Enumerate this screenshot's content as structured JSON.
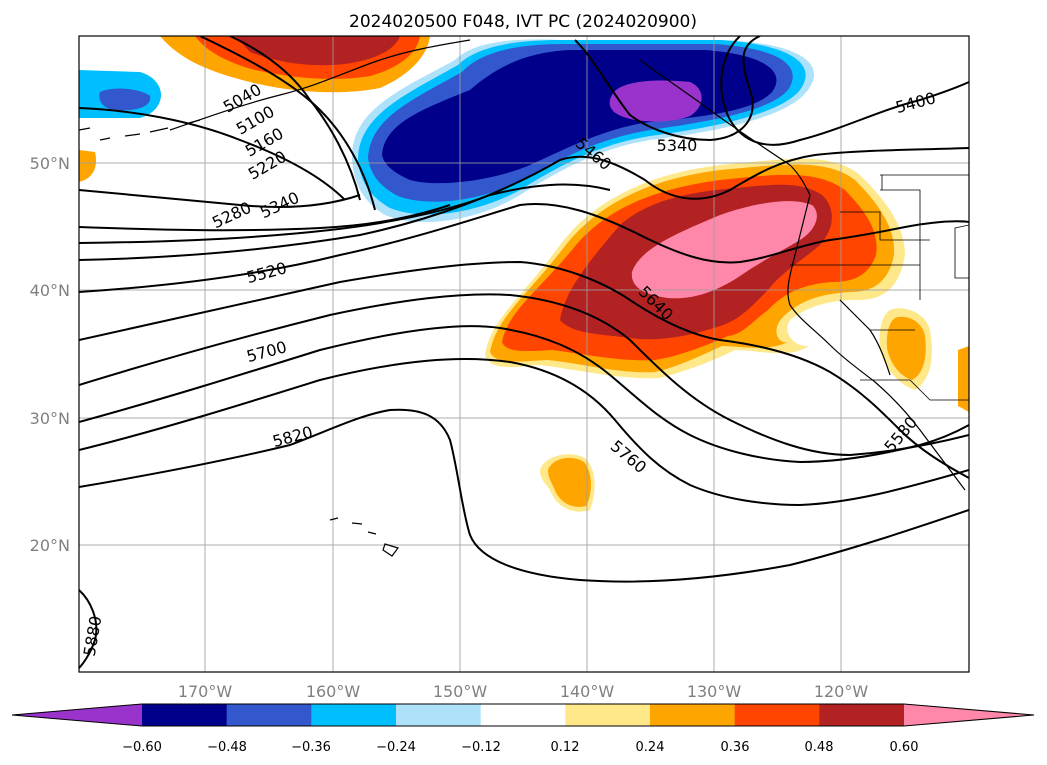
{
  "title": "2024020500 F048, IVT PC (2024020900)",
  "map": {
    "lon_range": [
      -180,
      -110
    ],
    "lat_range": [
      10,
      60
    ],
    "lat_labels": [
      "20°N",
      "30°N",
      "40°N",
      "50°N"
    ],
    "lon_labels": [
      "170°W",
      "160°W",
      "150°W",
      "140°W",
      "130°W",
      "120°W"
    ],
    "gridlines": true,
    "contour_labels": [
      "5040",
      "5100",
      "5160",
      "5220",
      "5280",
      "5340",
      "5340",
      "5400",
      "5460",
      "5520",
      "5580",
      "5640",
      "5700",
      "5760",
      "5820",
      "5880"
    ]
  },
  "colorbar": {
    "ticks": [
      "−0.60",
      "−0.48",
      "−0.36",
      "−0.24",
      "−0.12",
      "0.12",
      "0.24",
      "0.36",
      "0.48",
      "0.60"
    ],
    "colors": [
      "#9933cc",
      "#00008b",
      "#3357cc",
      "#00bfff",
      "#aee2fa",
      "#ffffff",
      "#ffe88a",
      "#ffa500",
      "#ff4500",
      "#b22222",
      "#ff88aa"
    ],
    "extend": "both"
  }
}
